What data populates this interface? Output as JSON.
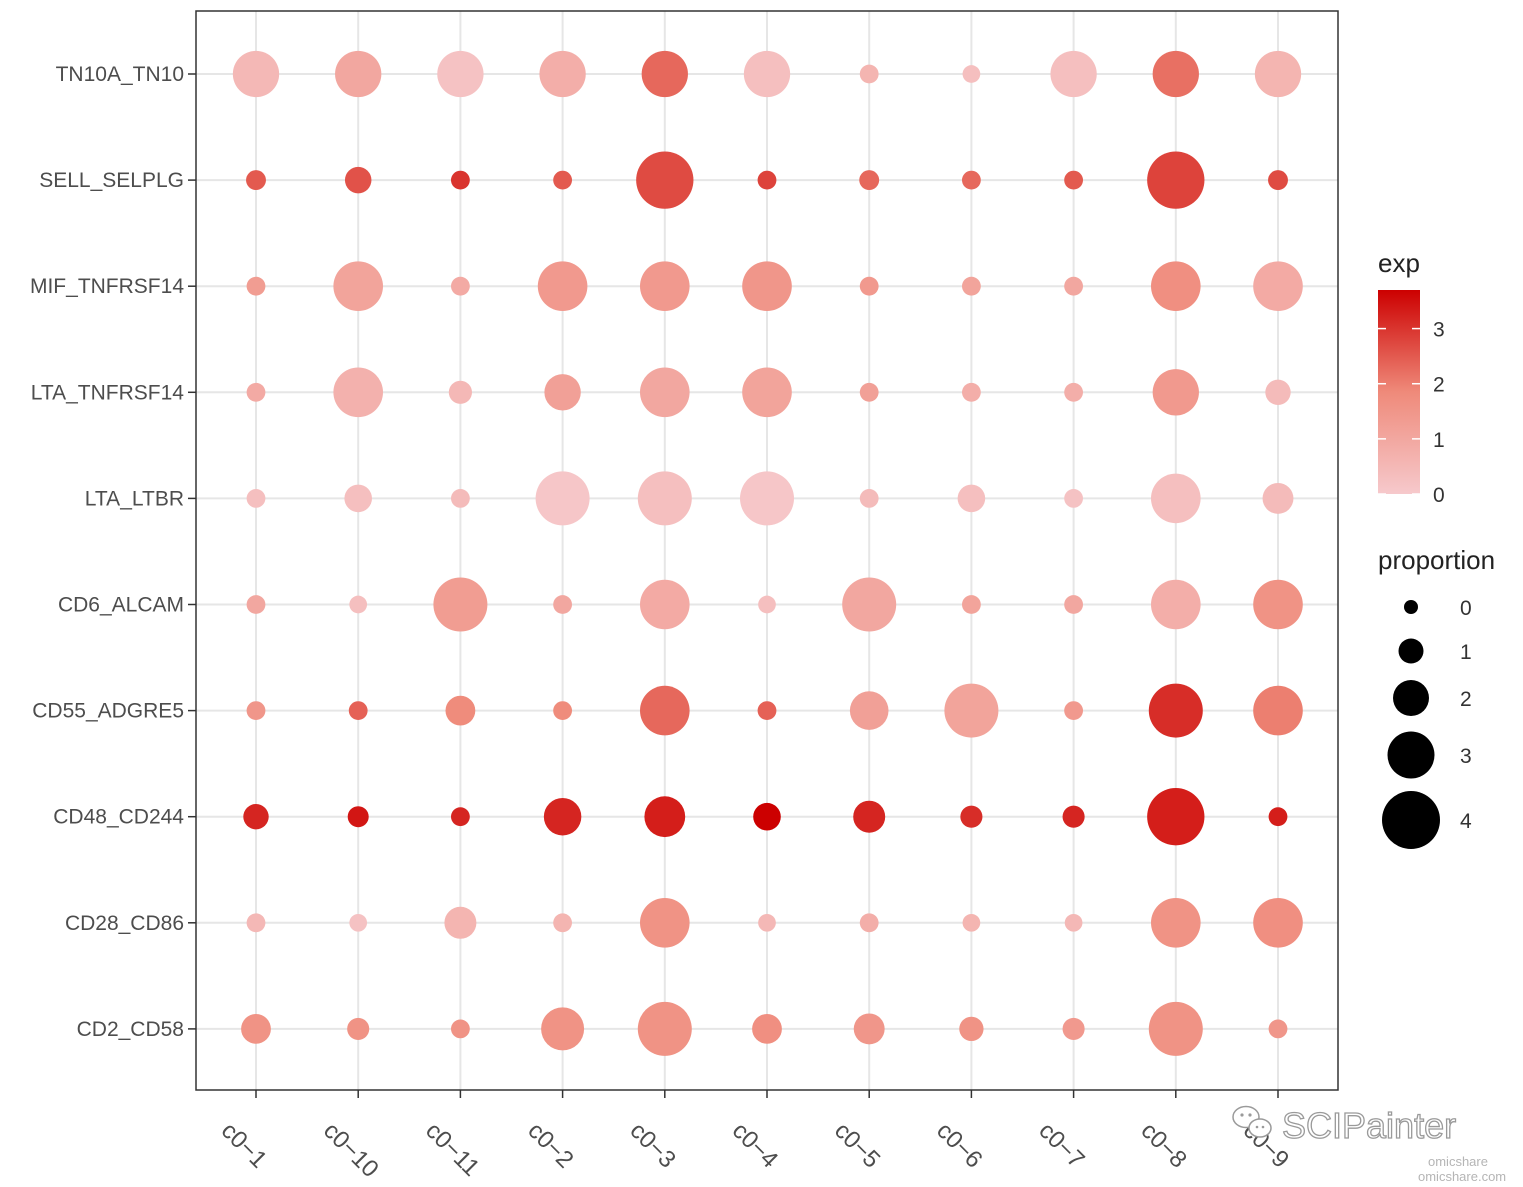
{
  "chart_data": {
    "type": "dot",
    "x_categories": [
      "c0−1",
      "c0−10",
      "c0−11",
      "c0−2",
      "c0−3",
      "c0−4",
      "c0−5",
      "c0−6",
      "c0−7",
      "c0−8",
      "c0−9"
    ],
    "y_categories": [
      "TN10A_TN10",
      "SELL_SELPLG",
      "MIF_TNFRSF14",
      "LTA_TNFRSF14",
      "LTA_LTBR",
      "CD6_ALCAM",
      "CD55_ADGRE5",
      "CD48_CD244",
      "CD28_CD86",
      "CD2_CD58"
    ],
    "proportion": [
      [
        3.3,
        3.3,
        3.3,
        3.3,
        3.3,
        3.3,
        0.8,
        0.7,
        3.3,
        3.3,
        3.3
      ],
      [
        0.9,
        1.5,
        0.8,
        0.8,
        4.3,
        0.8,
        0.9,
        0.8,
        0.8,
        4.3,
        0.9
      ],
      [
        0.8,
        3.6,
        0.8,
        3.6,
        3.6,
        3.6,
        0.8,
        0.8,
        0.8,
        3.6,
        3.6
      ],
      [
        0.8,
        3.6,
        1.2,
        2.4,
        3.6,
        3.6,
        0.8,
        0.8,
        0.8,
        3.3,
        1.4
      ],
      [
        0.8,
        1.6,
        0.8,
        4.0,
        4.0,
        4.0,
        0.8,
        1.6,
        0.8,
        3.6,
        1.9
      ],
      [
        0.8,
        0.7,
        4.0,
        0.8,
        3.6,
        0.7,
        4.0,
        0.8,
        0.8,
        3.6,
        3.6
      ],
      [
        0.8,
        0.8,
        1.8,
        0.8,
        3.6,
        0.8,
        2.6,
        4.0,
        0.8,
        4.0,
        3.6
      ],
      [
        1.4,
        1.0,
        0.8,
        2.5,
        2.8,
        1.6,
        2.0,
        1.1,
        1.1,
        4.3,
        0.8
      ],
      [
        0.8,
        0.7,
        2.0,
        0.8,
        3.6,
        0.7,
        0.8,
        0.7,
        0.7,
        3.6,
        3.6
      ],
      [
        1.8,
        1.1,
        0.8,
        3.0,
        4.0,
        1.8,
        1.9,
        1.3,
        1.1,
        4.0,
        0.8
      ]
    ],
    "exp": [
      [
        0.5,
        1.0,
        0.2,
        0.8,
        2.3,
        0.3,
        0.6,
        0.3,
        0.3,
        2.2,
        0.6
      ],
      [
        2.5,
        2.6,
        3.0,
        2.5,
        2.7,
        2.8,
        2.3,
        2.3,
        2.5,
        2.8,
        2.7
      ],
      [
        1.3,
        1.1,
        0.9,
        1.4,
        1.4,
        1.5,
        1.4,
        1.1,
        1.0,
        1.7,
        0.9
      ],
      [
        0.9,
        0.7,
        0.5,
        1.2,
        1.0,
        1.1,
        1.2,
        0.8,
        0.8,
        1.4,
        0.4
      ],
      [
        0.3,
        0.3,
        0.4,
        0.1,
        0.3,
        0.1,
        0.4,
        0.3,
        0.2,
        0.3,
        0.4
      ],
      [
        1.0,
        0.3,
        1.3,
        1.0,
        0.9,
        0.3,
        1.0,
        1.1,
        1.0,
        0.8,
        1.6
      ],
      [
        1.5,
        2.4,
        1.8,
        1.8,
        2.3,
        2.4,
        1.2,
        1.1,
        1.4,
        3.1,
        2.0
      ],
      [
        3.2,
        3.4,
        3.2,
        3.2,
        3.3,
        3.8,
        3.2,
        3.1,
        3.2,
        3.3,
        3.3
      ],
      [
        0.5,
        0.2,
        0.6,
        0.6,
        1.6,
        0.5,
        0.8,
        0.6,
        0.5,
        1.6,
        1.7
      ],
      [
        1.6,
        1.6,
        1.6,
        1.6,
        1.6,
        1.7,
        1.5,
        1.6,
        1.4,
        1.6,
        1.5
      ]
    ],
    "exp_range": [
      0,
      3.7
    ],
    "legend_color": {
      "title": "exp",
      "ticks": [
        "3",
        "2",
        "1",
        "0"
      ],
      "tick_values": [
        3,
        2,
        1,
        0
      ],
      "low_color": "#f6c9cc",
      "high_color": "#cc0000"
    },
    "legend_size": {
      "title": "proportion",
      "labels": [
        "0",
        "1",
        "2",
        "3",
        "4"
      ],
      "values": [
        0,
        1,
        2,
        3,
        4
      ]
    },
    "grid": true,
    "legend_position": "right"
  },
  "watermark": {
    "brand": "SCIPainter",
    "site_line1": "omicshare",
    "site_line2": "omicshare.com"
  }
}
